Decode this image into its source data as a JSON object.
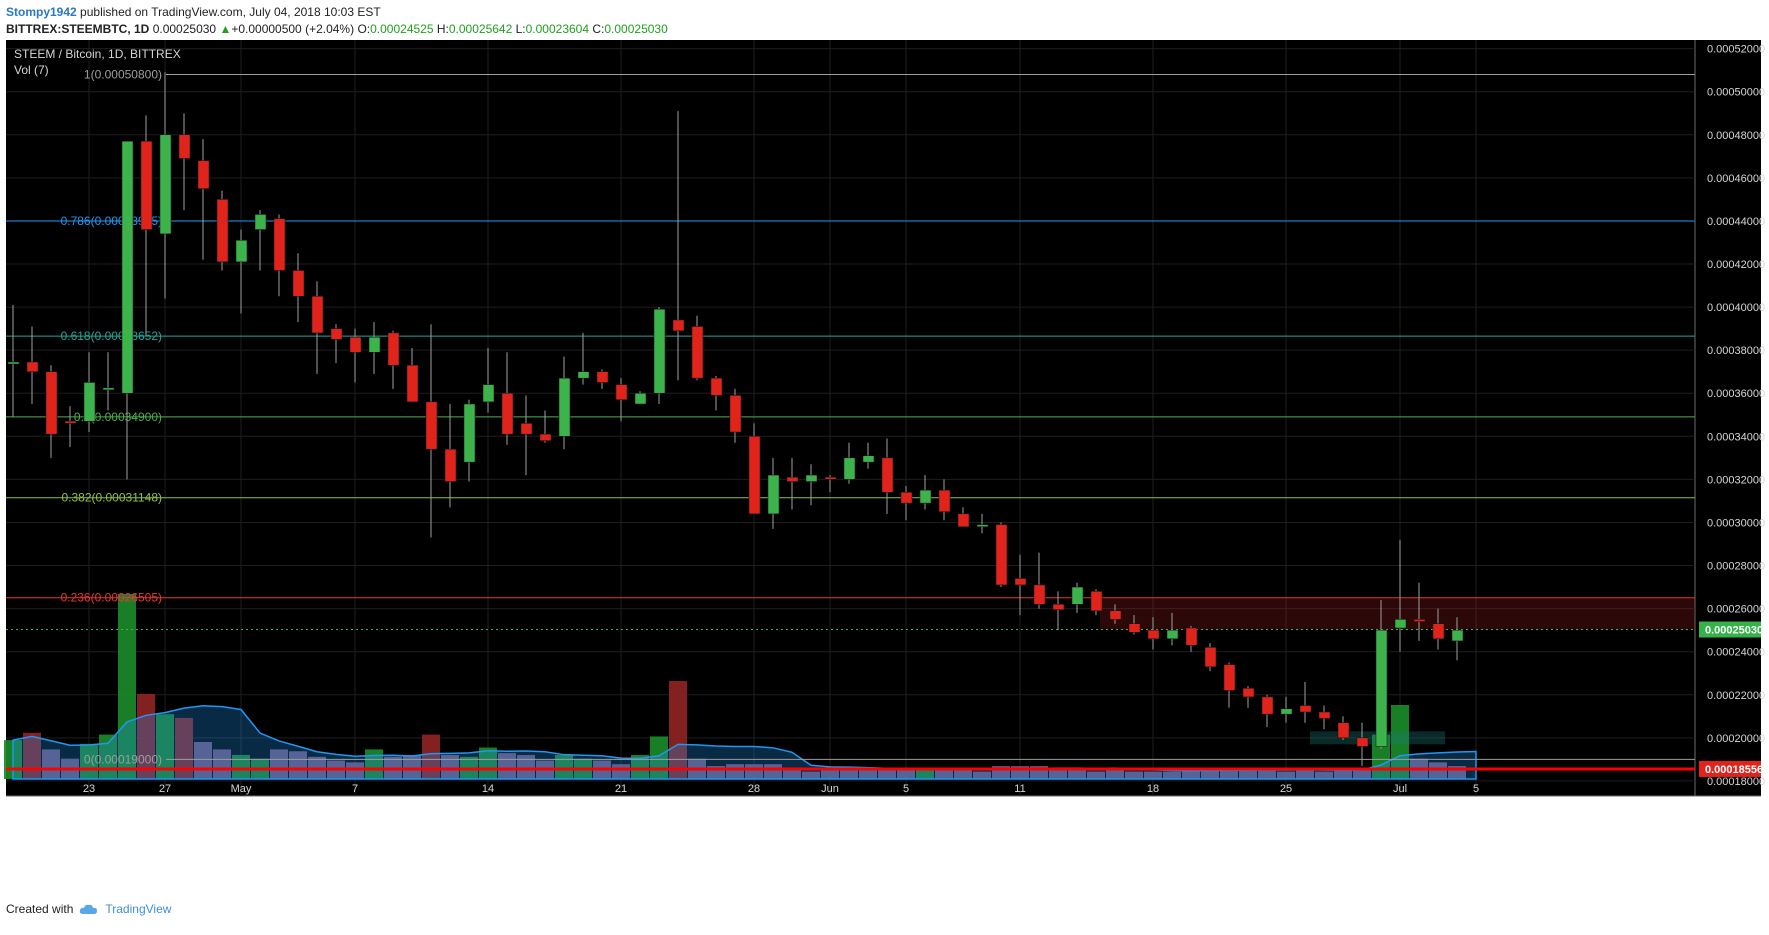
{
  "header": {
    "user": "Stompy1942",
    "published": "published on TradingView.com, July 04, 2018 10:03 EST",
    "symbol": "BITTREX:STEEMBTC, 1D",
    "last": "0.00025030",
    "change_arrow": "▲",
    "change": "+0.00000500 (+2.04%)",
    "o_label": "O:",
    "o": "0.00024525",
    "h_label": "H:",
    "h": "0.00025642",
    "l_label": "L:",
    "l": "0.00023604",
    "c_label": "C:",
    "c": "0.00025030"
  },
  "legend": {
    "title": "STEEM / Bitcoin, 1D, BITTREX",
    "vol": "Vol (7)"
  },
  "footer": {
    "created_with": "Created with",
    "brand": "TradingView",
    "brand_icon": "tradingview-cloud-icon"
  },
  "colors": {
    "background": "#000000",
    "up": "#3cb44b",
    "down": "#e0241c",
    "price_line": "#4caf50",
    "support_line": "#ff0000"
  },
  "chart_data": {
    "type": "candlestick",
    "title": "STEEM / Bitcoin, 1D, BITTREX",
    "ylim": [
      0.000173,
      0.000524
    ],
    "y_ticks": [
      "0.00052000",
      "0.00050000",
      "0.00048000",
      "0.00046000",
      "0.00044000",
      "0.00042000",
      "0.00040000",
      "0.00038000",
      "0.00036000",
      "0.00034000",
      "0.00032000",
      "0.00030000",
      "0.00028000",
      "0.00026000",
      "0.00024000",
      "0.00022000",
      "0.00020000",
      "0.00018000"
    ],
    "y_tick_values": [
      0.00052,
      0.0005,
      0.00048,
      0.00046,
      0.00044,
      0.00042,
      0.0004,
      0.00038,
      0.00036,
      0.00034,
      0.00032,
      0.0003,
      0.00028,
      0.00026,
      0.00024,
      0.00022,
      0.0002,
      0.00018
    ],
    "x_ticks": [
      {
        "label": "23",
        "i": 4
      },
      {
        "label": "27",
        "i": 8
      },
      {
        "label": "May",
        "i": 12
      },
      {
        "label": "7",
        "i": 18
      },
      {
        "label": "14",
        "i": 25
      },
      {
        "label": "21",
        "i": 32
      },
      {
        "label": "28",
        "i": 39
      },
      {
        "label": "Jun",
        "i": 43
      },
      {
        "label": "5",
        "i": 47
      },
      {
        "label": "11",
        "i": 53
      },
      {
        "label": "18",
        "i": 60
      },
      {
        "label": "25",
        "i": 67
      },
      {
        "label": "Jul",
        "i": 73
      },
      {
        "label": "5",
        "i": 77
      }
    ],
    "last_price_tag": "0.00025030",
    "last_price": 0.0002503,
    "support_tag": "0.00018556",
    "support_price": 0.00018556,
    "fib_levels": [
      {
        "label": "1(0.00050800)",
        "value": 0.000508,
        "color": "#9e9e9e"
      },
      {
        "label": "0.786(0.00043995)",
        "value": 0.00043995,
        "color": "#2196f3"
      },
      {
        "label": "0.618(0.00038652)",
        "value": 0.00038652,
        "color": "#26a69a"
      },
      {
        "label": "0.5(0.00034900)",
        "value": 0.000349,
        "color": "#4caf50"
      },
      {
        "label": "0.382(0.00031148)",
        "value": 0.00031148,
        "color": "#8bc34a"
      },
      {
        "label": "0.236(0.00026505)",
        "value": 0.00026505,
        "color": "#e53935"
      },
      {
        "label": "0(0.00019000)",
        "value": 0.00019,
        "color": "#9e9e9e"
      }
    ],
    "candles": [
      {
        "o": 0.0003745,
        "h": 0.000401,
        "l": 0.000349,
        "c": 0.0003745
      },
      {
        "o": 0.0003745,
        "h": 0.000391,
        "l": 0.000355,
        "c": 0.00037
      },
      {
        "o": 0.00037,
        "h": 0.000373,
        "l": 0.00033,
        "c": 0.000341
      },
      {
        "o": 0.000347,
        "h": 0.000354,
        "l": 0.000335,
        "c": 0.0003465
      },
      {
        "o": 0.000347,
        "h": 0.000379,
        "l": 0.000342,
        "c": 0.000365
      },
      {
        "o": 0.000362,
        "h": 0.000379,
        "l": 0.000352,
        "c": 0.0003625
      },
      {
        "o": 0.00036,
        "h": 0.000477,
        "l": 0.00032,
        "c": 0.000477
      },
      {
        "o": 0.000477,
        "h": 0.000489,
        "l": 0.000387,
        "c": 0.000436
      },
      {
        "o": 0.000434,
        "h": 0.000509,
        "l": 0.000404,
        "c": 0.00048
      },
      {
        "o": 0.00048,
        "h": 0.00049,
        "l": 0.000445,
        "c": 0.000469
      },
      {
        "o": 0.000468,
        "h": 0.000478,
        "l": 0.000422,
        "c": 0.000455
      },
      {
        "o": 0.00045,
        "h": 0.000454,
        "l": 0.000417,
        "c": 0.000421
      },
      {
        "o": 0.000421,
        "h": 0.000436,
        "l": 0.000397,
        "c": 0.000431
      },
      {
        "o": 0.000436,
        "h": 0.000445,
        "l": 0.000417,
        "c": 0.000443
      },
      {
        "o": 0.000441,
        "h": 0.000443,
        "l": 0.000405,
        "c": 0.000417
      },
      {
        "o": 0.000417,
        "h": 0.000425,
        "l": 0.000393,
        "c": 0.000405
      },
      {
        "o": 0.000405,
        "h": 0.000412,
        "l": 0.000369,
        "c": 0.000388
      },
      {
        "o": 0.00039,
        "h": 0.000392,
        "l": 0.000374,
        "c": 0.000385
      },
      {
        "o": 0.000386,
        "h": 0.00039,
        "l": 0.000365,
        "c": 0.000379
      },
      {
        "o": 0.000379,
        "h": 0.000393,
        "l": 0.000369,
        "c": 0.000386
      },
      {
        "o": 0.000388,
        "h": 0.000389,
        "l": 0.000362,
        "c": 0.000373
      },
      {
        "o": 0.000373,
        "h": 0.000381,
        "l": 0.000357,
        "c": 0.000356
      },
      {
        "o": 0.000356,
        "h": 0.000392,
        "l": 0.000293,
        "c": 0.000334
      },
      {
        "o": 0.000334,
        "h": 0.000355,
        "l": 0.000307,
        "c": 0.000319
      },
      {
        "o": 0.000328,
        "h": 0.000357,
        "l": 0.000319,
        "c": 0.000355
      },
      {
        "o": 0.000356,
        "h": 0.000381,
        "l": 0.000351,
        "c": 0.000364
      },
      {
        "o": 0.00036,
        "h": 0.000379,
        "l": 0.000336,
        "c": 0.000341
      },
      {
        "o": 0.000346,
        "h": 0.000359,
        "l": 0.000322,
        "c": 0.000341
      },
      {
        "o": 0.000341,
        "h": 0.000352,
        "l": 0.000337,
        "c": 0.000338
      },
      {
        "o": 0.00034,
        "h": 0.000377,
        "l": 0.000334,
        "c": 0.000367
      },
      {
        "o": 0.000367,
        "h": 0.000388,
        "l": 0.000364,
        "c": 0.00037
      },
      {
        "o": 0.00037,
        "h": 0.000371,
        "l": 0.000362,
        "c": 0.000365
      },
      {
        "o": 0.000364,
        "h": 0.000367,
        "l": 0.000347,
        "c": 0.000357
      },
      {
        "o": 0.000355,
        "h": 0.000361,
        "l": 0.000355,
        "c": 0.00036
      },
      {
        "o": 0.00036,
        "h": 0.0004,
        "l": 0.000355,
        "c": 0.000399
      },
      {
        "o": 0.000394,
        "h": 0.000491,
        "l": 0.000366,
        "c": 0.000389
      },
      {
        "o": 0.000391,
        "h": 0.000396,
        "l": 0.000366,
        "c": 0.000367
      },
      {
        "o": 0.000367,
        "h": 0.000368,
        "l": 0.000352,
        "c": 0.000359
      },
      {
        "o": 0.000359,
        "h": 0.000362,
        "l": 0.000337,
        "c": 0.000342
      },
      {
        "o": 0.00034,
        "h": 0.000346,
        "l": 0.000304,
        "c": 0.000304
      },
      {
        "o": 0.000304,
        "h": 0.00033,
        "l": 0.000297,
        "c": 0.000322
      },
      {
        "o": 0.000321,
        "h": 0.00033,
        "l": 0.000306,
        "c": 0.000319
      },
      {
        "o": 0.000319,
        "h": 0.000327,
        "l": 0.000308,
        "c": 0.000322
      },
      {
        "o": 0.000321,
        "h": 0.000322,
        "l": 0.000314,
        "c": 0.0003205
      },
      {
        "o": 0.00032,
        "h": 0.000337,
        "l": 0.000318,
        "c": 0.00033
      },
      {
        "o": 0.000328,
        "h": 0.000337,
        "l": 0.000325,
        "c": 0.000331
      },
      {
        "o": 0.00033,
        "h": 0.000339,
        "l": 0.000304,
        "c": 0.000314
      },
      {
        "o": 0.000314,
        "h": 0.000317,
        "l": 0.000301,
        "c": 0.000309
      },
      {
        "o": 0.000309,
        "h": 0.000322,
        "l": 0.000306,
        "c": 0.000315
      },
      {
        "o": 0.000315,
        "h": 0.00032,
        "l": 0.000301,
        "c": 0.000305
      },
      {
        "o": 0.000304,
        "h": 0.000307,
        "l": 0.000298,
        "c": 0.000298
      },
      {
        "o": 0.000299,
        "h": 0.000304,
        "l": 0.000295,
        "c": 0.000299
      },
      {
        "o": 0.000299,
        "h": 0.0003,
        "l": 0.00027,
        "c": 0.000271
      },
      {
        "o": 0.000274,
        "h": 0.000285,
        "l": 0.000257,
        "c": 0.000271
      },
      {
        "o": 0.000271,
        "h": 0.000286,
        "l": 0.00026,
        "c": 0.000262
      },
      {
        "o": 0.000262,
        "h": 0.000268,
        "l": 0.00025,
        "c": 0.0002595
      },
      {
        "o": 0.000262,
        "h": 0.000272,
        "l": 0.000258,
        "c": 0.00027
      },
      {
        "o": 0.000268,
        "h": 0.000269,
        "l": 0.000257,
        "c": 0.000259
      },
      {
        "o": 0.000259,
        "h": 0.000262,
        "l": 0.000253,
        "c": 0.000255
      },
      {
        "o": 0.000253,
        "h": 0.000257,
        "l": 0.000248,
        "c": 0.000249
      },
      {
        "o": 0.00025,
        "h": 0.000256,
        "l": 0.000241,
        "c": 0.000246
      },
      {
        "o": 0.000246,
        "h": 0.000258,
        "l": 0.000243,
        "c": 0.00025
      },
      {
        "o": 0.000251,
        "h": 0.000252,
        "l": 0.00024,
        "c": 0.000243
      },
      {
        "o": 0.000242,
        "h": 0.000244,
        "l": 0.000231,
        "c": 0.000233
      },
      {
        "o": 0.000234,
        "h": 0.000235,
        "l": 0.000214,
        "c": 0.000222
      },
      {
        "o": 0.000223,
        "h": 0.000224,
        "l": 0.000214,
        "c": 0.000219
      },
      {
        "o": 0.000219,
        "h": 0.00022,
        "l": 0.000205,
        "c": 0.000211
      },
      {
        "o": 0.000211,
        "h": 0.000219,
        "l": 0.000207,
        "c": 0.0002135
      },
      {
        "o": 0.000215,
        "h": 0.000226,
        "l": 0.000207,
        "c": 0.000212
      },
      {
        "o": 0.000212,
        "h": 0.000215,
        "l": 0.000204,
        "c": 0.000209
      },
      {
        "o": 0.000207,
        "h": 0.00021,
        "l": 0.000199,
        "c": 0.0002
      },
      {
        "o": 0.0002,
        "h": 0.000207,
        "l": 0.000187,
        "c": 0.000196
      },
      {
        "o": 0.000196,
        "h": 0.000264,
        "l": 0.000195,
        "c": 0.00025
      },
      {
        "o": 0.000251,
        "h": 0.000292,
        "l": 0.00024,
        "c": 0.000255
      },
      {
        "o": 0.000255,
        "h": 0.000272,
        "l": 0.000245,
        "c": 0.000254
      },
      {
        "o": 0.000253,
        "h": 0.00026,
        "l": 0.000241,
        "c": 0.000246
      },
      {
        "o": 0.000245,
        "h": 0.000256,
        "l": 0.000236,
        "c": 0.00025
      }
    ],
    "volume_rel": [
      0.21,
      0.25,
      0.16,
      0.11,
      0.19,
      0.24,
      1.0,
      0.46,
      0.35,
      0.33,
      0.2,
      0.16,
      0.13,
      0.11,
      0.16,
      0.15,
      0.12,
      0.1,
      0.09,
      0.16,
      0.12,
      0.13,
      0.24,
      0.13,
      0.12,
      0.17,
      0.14,
      0.13,
      0.1,
      0.13,
      0.11,
      0.1,
      0.08,
      0.13,
      0.23,
      0.53,
      0.11,
      0.07,
      0.08,
      0.08,
      0.08,
      0.06,
      0.04,
      0.05,
      0.06,
      0.06,
      0.05,
      0.05,
      0.05,
      0.05,
      0.05,
      0.04,
      0.07,
      0.07,
      0.07,
      0.06,
      0.05,
      0.04,
      0.05,
      0.04,
      0.04,
      0.04,
      0.05,
      0.06,
      0.05,
      0.05,
      0.05,
      0.04,
      0.05,
      0.04,
      0.05,
      0.06,
      0.24,
      0.4,
      0.11,
      0.09,
      0.07,
      0.07
    ]
  }
}
